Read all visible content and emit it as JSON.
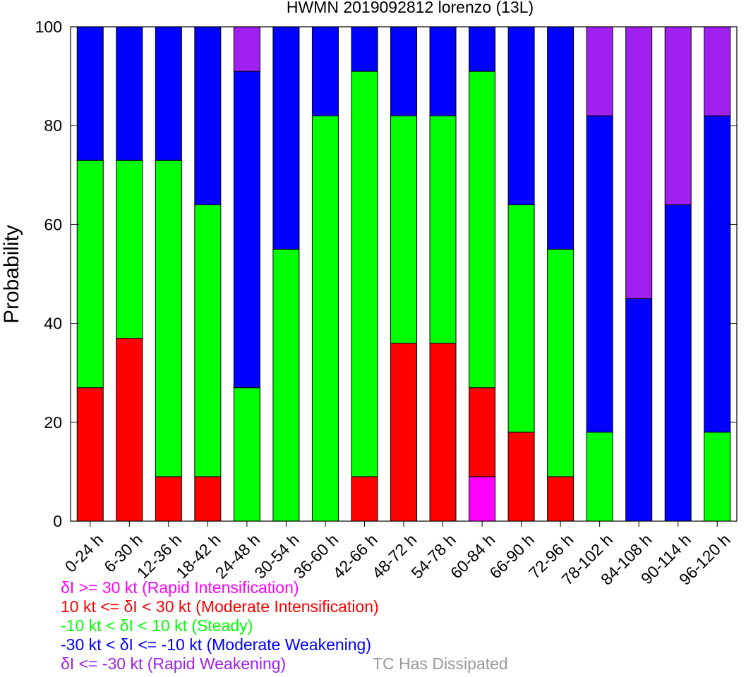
{
  "chart_data": {
    "type": "bar",
    "stacked": true,
    "title": "HWMN 2019092812 lorenzo (13L)",
    "xlabel": "",
    "ylabel": "Probability",
    "ylim": [
      0,
      100
    ],
    "yticks": [
      0,
      20,
      40,
      60,
      80,
      100
    ],
    "grid": false,
    "categories": [
      "0-24 h",
      "6-30 h",
      "12-36 h",
      "18-42 h",
      "24-48 h",
      "30-54 h",
      "36-60 h",
      "42-66 h",
      "48-72 h",
      "54-78 h",
      "60-84 h",
      "66-90 h",
      "72-96 h",
      "78-102 h",
      "84-108 h",
      "90-114 h",
      "96-120 h"
    ],
    "series": [
      {
        "name": "δI >= 30 kt (Rapid Intensification)",
        "color": "#ff00ff",
        "values": [
          0,
          0,
          0,
          0,
          0,
          0,
          0,
          0,
          0,
          0,
          9,
          0,
          0,
          0,
          0,
          0,
          0
        ]
      },
      {
        "name": "10 kt <= δI < 30 kt (Moderate Intensification)",
        "color": "#ff0000",
        "values": [
          27,
          37,
          9,
          9,
          0,
          0,
          0,
          9,
          36,
          36,
          18,
          18,
          9,
          0,
          0,
          0,
          0
        ]
      },
      {
        "name": "-10 kt < δI < 10 kt (Steady)",
        "color": "#00ff00",
        "values": [
          46,
          36,
          64,
          55,
          27,
          55,
          82,
          82,
          46,
          46,
          64,
          46,
          46,
          18,
          0,
          0,
          18
        ]
      },
      {
        "name": "-30 kt < δI <= -10 kt (Moderate Weakening)",
        "color": "#0000ff",
        "values": [
          27,
          27,
          27,
          36,
          64,
          45,
          18,
          9,
          18,
          18,
          9,
          36,
          45,
          64,
          45,
          64,
          64
        ]
      },
      {
        "name": "δI <= -30 kt (Rapid Weakening)",
        "color": "#a020f0",
        "values": [
          0,
          0,
          0,
          0,
          9,
          0,
          0,
          0,
          0,
          0,
          0,
          0,
          0,
          18,
          55,
          36,
          18
        ]
      }
    ],
    "legend_position": "bottom-left",
    "extra_legend": {
      "label": "TC Has Dissipated",
      "color": "#999999"
    }
  }
}
